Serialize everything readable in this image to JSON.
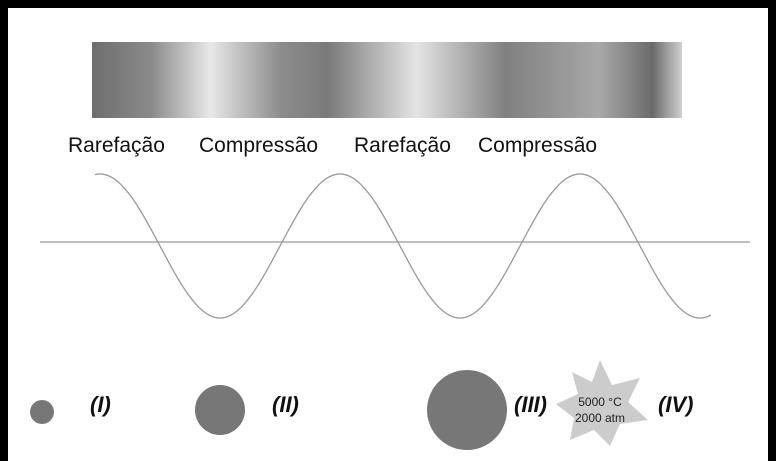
{
  "labels": [
    "Rarefação",
    "Compressão",
    "Rarefação",
    "Compressão"
  ],
  "stages": [
    "(I)",
    "(II)",
    "(III)",
    "(IV)"
  ],
  "burst": {
    "temperature": "5000 °C",
    "pressure": "2000 atm"
  }
}
